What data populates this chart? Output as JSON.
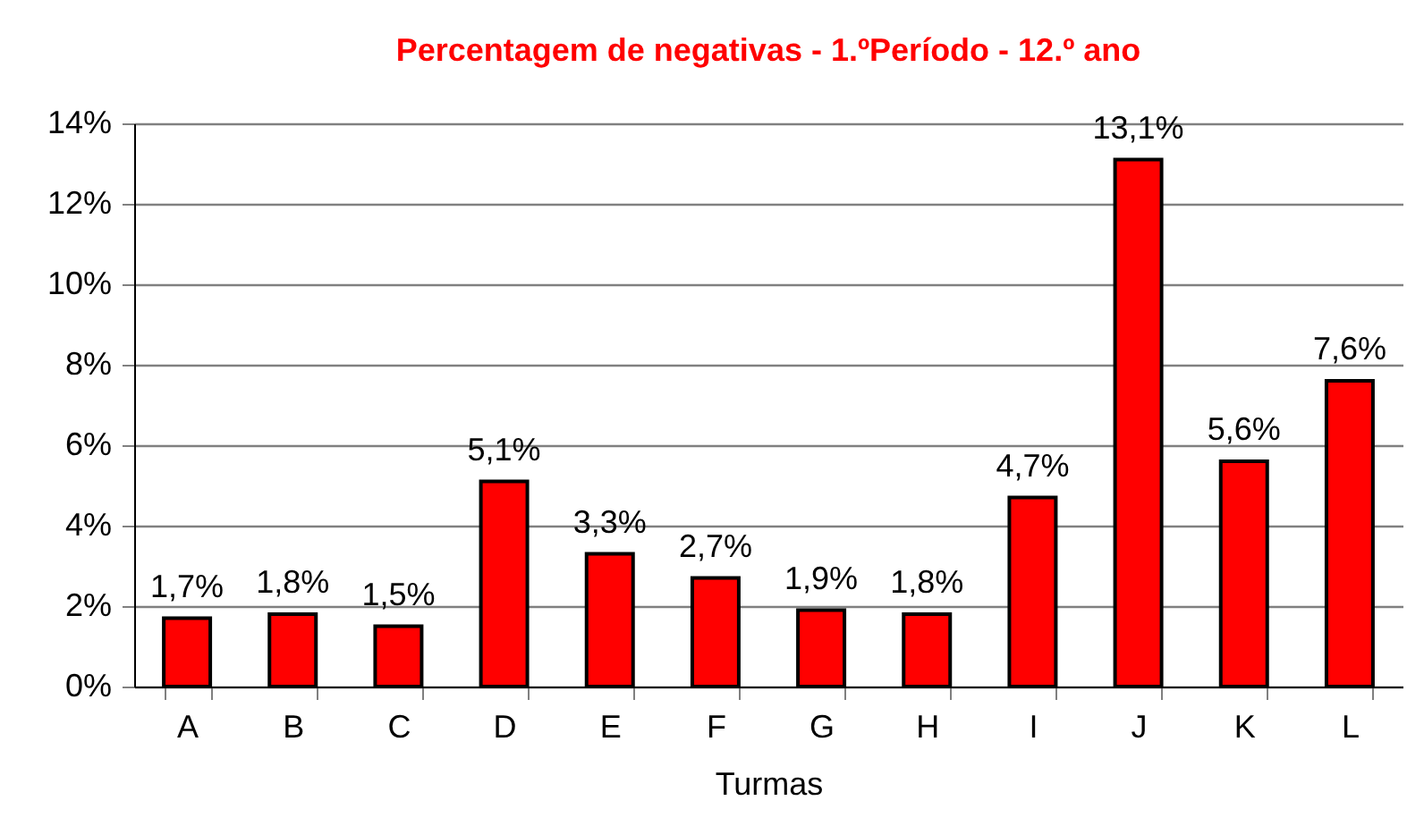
{
  "chart_data": {
    "type": "bar",
    "title": "Percentagem de negativas - 1.ºPeríodo - 12.º ano",
    "xlabel": "Turmas",
    "categories": [
      "A",
      "B",
      "C",
      "D",
      "E",
      "F",
      "G",
      "H",
      "I",
      "J",
      "K",
      "L"
    ],
    "values": [
      1.7,
      1.8,
      1.5,
      5.1,
      3.3,
      2.7,
      1.9,
      1.8,
      4.7,
      13.1,
      5.6,
      7.6
    ],
    "value_labels": [
      "1,7%",
      "1,8%",
      "1,5%",
      "5,1%",
      "3,3%",
      "2,7%",
      "1,9%",
      "1,8%",
      "4,7%",
      "13,1%",
      "5,6%",
      "7,6%"
    ],
    "color": "#ff0000",
    "ylim": [
      0,
      14
    ],
    "yticks": [
      {
        "value": 0,
        "label": "0%"
      },
      {
        "value": 2,
        "label": "2%"
      },
      {
        "value": 4,
        "label": "4%"
      },
      {
        "value": 6,
        "label": "6%"
      },
      {
        "value": 8,
        "label": "8%"
      },
      {
        "value": 10,
        "label": "10%"
      },
      {
        "value": 12,
        "label": "12%"
      },
      {
        "value": 14,
        "label": "14%"
      }
    ],
    "grid": "y"
  }
}
